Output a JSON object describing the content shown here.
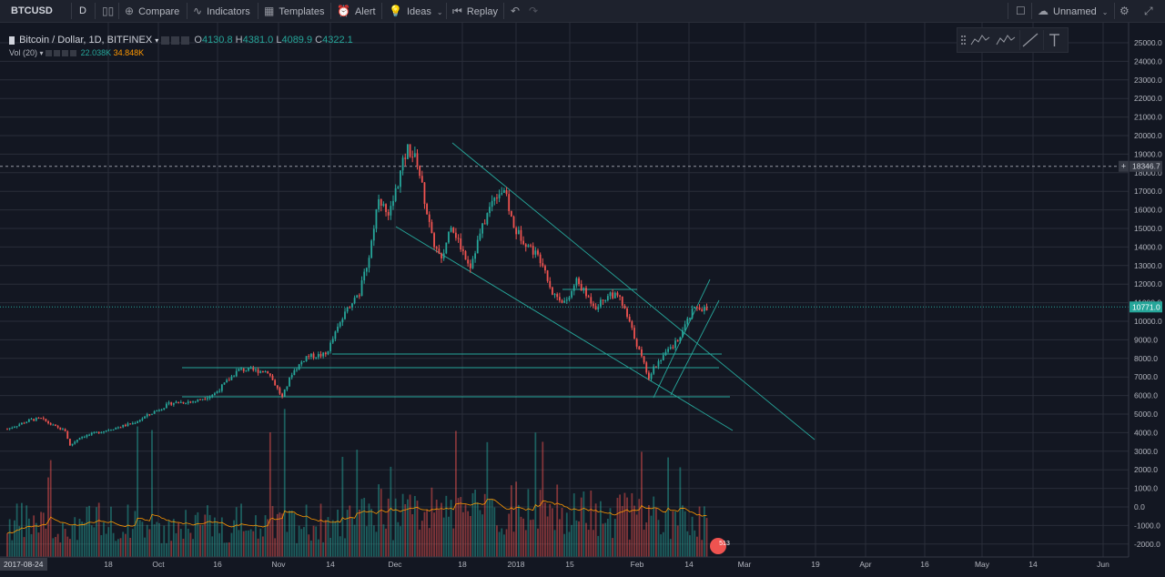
{
  "toolbar": {
    "symbol": "BTCUSD",
    "interval": "D",
    "compare": "Compare",
    "indicators": "Indicators",
    "templates": "Templates",
    "alert": "Alert",
    "ideas": "Ideas",
    "replay": "Replay",
    "layout_name": "Unnamed"
  },
  "legend": {
    "title": "Bitcoin / Dollar, 1D, BITFINEX",
    "o_label": "O",
    "o": "4130.8",
    "h_label": "H",
    "h": "4381.0",
    "l_label": "L",
    "l": "4089.9",
    "c_label": "C",
    "c": "4322.1"
  },
  "volume_legend": {
    "name": "Vol (20)",
    "v1": "22.038K",
    "v2": "34.848K"
  },
  "price_axis": {
    "labels": [
      "25000.0",
      "24000.0",
      "23000.0",
      "22000.0",
      "21000.0",
      "20000.0",
      "19000.0",
      "18000.0",
      "17000.0",
      "16000.0",
      "15000.0",
      "14000.0",
      "13000.0",
      "12000.0",
      "11000.0",
      "10000.0",
      "9000.0",
      "8000.0",
      "7000.0",
      "6000.0",
      "5000.0",
      "4000.0",
      "3000.0",
      "2000.0",
      "1000.0",
      "0.0",
      "-1000.0",
      "-2000.0"
    ],
    "crosshair_price": "18346.7",
    "last_price": "10771.0"
  },
  "time_axis": {
    "start_label": "2017-08-24",
    "labels": [
      "18",
      "Oct",
      "16",
      "Nov",
      "14",
      "Dec",
      "18",
      "2018",
      "15",
      "Feb",
      "14",
      "Mar",
      "19",
      "Apr",
      "16",
      "May",
      "14",
      "Jun"
    ]
  },
  "badge": "513",
  "colors": {
    "up": "#26a69a",
    "down": "#ef5350",
    "background": "#131722",
    "grid": "#2a2e39",
    "trendline": "#26a69a"
  }
}
